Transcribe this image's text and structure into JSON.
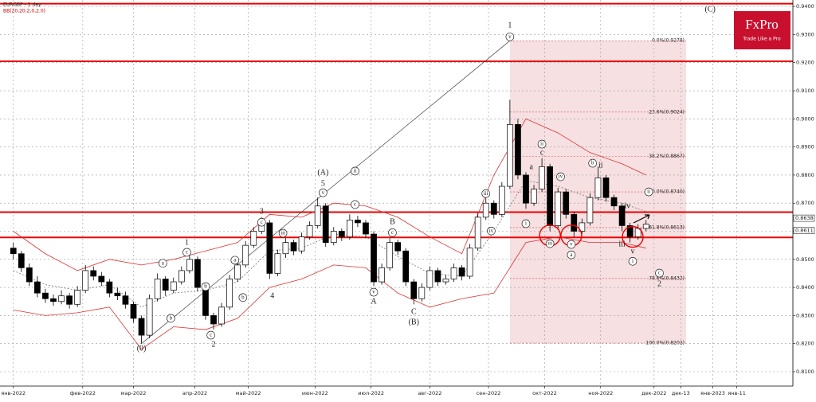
{
  "chart_data": {
    "type": "candlestick",
    "title": "EURGBP - 1 day",
    "subtitle": "BB(20,20,2,0,2.0)",
    "brand": {
      "name": "FxPro",
      "tagline": "Trade Like a Pro"
    },
    "xlim": [
      -5,
      292
    ],
    "ylim": [
      0.8049,
      0.9423
    ],
    "xticks": [
      {
        "value": 0,
        "label": "янв-2022"
      },
      {
        "value": 26,
        "label": "фев-2022"
      },
      {
        "value": 45,
        "label": "мар-2022"
      },
      {
        "value": 68,
        "label": "апр-2022"
      },
      {
        "value": 88,
        "label": "май-2022"
      },
      {
        "value": 113,
        "label": "июн-2022"
      },
      {
        "value": 134,
        "label": "июл-2022"
      },
      {
        "value": 156,
        "label": "авг-2022"
      },
      {
        "value": 178,
        "label": "сен-2022"
      },
      {
        "value": 199,
        "label": "окт-2022"
      },
      {
        "value": 220,
        "label": "ноя-2022"
      },
      {
        "value": 240,
        "label": "дек-2022"
      },
      {
        "value": 250,
        "label": "дек-13"
      },
      {
        "value": 262,
        "label": "янв-2023"
      },
      {
        "value": 271,
        "label": "янв-11"
      }
    ],
    "yticks": [
      {
        "value": 0.81,
        "label": "0.8100"
      },
      {
        "value": 0.82,
        "label": "0.8200"
      },
      {
        "value": 0.83,
        "label": "0.8300"
      },
      {
        "value": 0.84,
        "label": "0.8400"
      },
      {
        "value": 0.85,
        "label": "0.8500"
      },
      {
        "value": 0.86,
        "label": "0.8600"
      },
      {
        "value": 0.87,
        "label": "0.8700"
      },
      {
        "value": 0.88,
        "label": "0.8800"
      },
      {
        "value": 0.89,
        "label": "0.8900"
      },
      {
        "value": 0.9,
        "label": "0.9000"
      },
      {
        "value": 0.91,
        "label": "0.9100"
      },
      {
        "value": 0.92,
        "label": "0.9200"
      },
      {
        "value": 0.93,
        "label": "0.9300"
      },
      {
        "value": 0.94,
        "label": "0.9400"
      }
    ],
    "grid": true,
    "up_color": "#ffffff",
    "down_color": "#000000",
    "x": [
      0,
      3,
      6,
      9,
      12,
      15,
      18,
      21,
      24,
      27,
      30,
      33,
      36,
      39,
      42,
      45,
      48,
      51,
      54,
      57,
      60,
      63,
      66,
      69,
      72,
      75,
      78,
      81,
      84,
      87,
      90,
      93,
      96,
      99,
      102,
      105,
      108,
      111,
      114,
      117,
      120,
      123,
      126,
      129,
      132,
      135,
      138,
      141,
      144,
      147,
      150,
      153,
      156,
      159,
      162,
      165,
      168,
      171,
      174,
      177,
      180,
      183,
      186,
      189,
      192,
      195,
      198,
      201,
      204,
      207,
      210,
      213,
      216,
      219,
      222,
      225,
      228,
      231,
      234,
      237
    ],
    "open": [
      0.854,
      0.852,
      0.847,
      0.842,
      0.838,
      0.836,
      0.835,
      0.837,
      0.834,
      0.839,
      0.846,
      0.844,
      0.842,
      0.838,
      0.837,
      0.834,
      0.829,
      0.823,
      0.836,
      0.843,
      0.839,
      0.842,
      0.846,
      0.85,
      0.84,
      0.83,
      0.827,
      0.833,
      0.843,
      0.848,
      0.855,
      0.86,
      0.863,
      0.845,
      0.852,
      0.856,
      0.853,
      0.858,
      0.862,
      0.869,
      0.856,
      0.86,
      0.858,
      0.864,
      0.863,
      0.859,
      0.842,
      0.847,
      0.856,
      0.853,
      0.842,
      0.836,
      0.84,
      0.846,
      0.842,
      0.843,
      0.847,
      0.844,
      0.854,
      0.865,
      0.87,
      0.866,
      0.876,
      0.898,
      0.88,
      0.87,
      0.875,
      0.883,
      0.862,
      0.874,
      0.866,
      0.86,
      0.863,
      0.872,
      0.879,
      0.872,
      0.869,
      0.862,
      0.858,
      0.861
    ],
    "high": [
      0.856,
      0.853,
      0.8485,
      0.844,
      0.8395,
      0.8375,
      0.839,
      0.838,
      0.8405,
      0.848,
      0.8475,
      0.8455,
      0.843,
      0.84,
      0.8385,
      0.835,
      0.83,
      0.8375,
      0.845,
      0.844,
      0.8435,
      0.8475,
      0.853,
      0.851,
      0.841,
      0.831,
      0.8345,
      0.8445,
      0.8495,
      0.8565,
      0.8615,
      0.865,
      0.864,
      0.8535,
      0.8575,
      0.857,
      0.8595,
      0.8635,
      0.872,
      0.87,
      0.8615,
      0.861,
      0.866,
      0.8655,
      0.864,
      0.86,
      0.8485,
      0.8575,
      0.857,
      0.854,
      0.843,
      0.8415,
      0.8475,
      0.847,
      0.8445,
      0.8485,
      0.848,
      0.8555,
      0.8665,
      0.872,
      0.871,
      0.8775,
      0.9068,
      0.9,
      0.881,
      0.8765,
      0.886,
      0.884,
      0.8755,
      0.875,
      0.867,
      0.8645,
      0.8735,
      0.883,
      0.88,
      0.873,
      0.87,
      0.863,
      0.8625,
      0.864
    ],
    "low": [
      0.85,
      0.8455,
      0.8405,
      0.8365,
      0.8345,
      0.8335,
      0.834,
      0.8325,
      0.833,
      0.838,
      0.8425,
      0.8405,
      0.8365,
      0.8355,
      0.8325,
      0.8275,
      0.82,
      0.822,
      0.835,
      0.837,
      0.838,
      0.841,
      0.845,
      0.8385,
      0.8285,
      0.825,
      0.826,
      0.832,
      0.842,
      0.847,
      0.854,
      0.859,
      0.843,
      0.844,
      0.8505,
      0.8515,
      0.852,
      0.857,
      0.861,
      0.8545,
      0.855,
      0.8565,
      0.857,
      0.8615,
      0.8575,
      0.8405,
      0.841,
      0.846,
      0.8515,
      0.8405,
      0.834,
      0.835,
      0.839,
      0.8405,
      0.841,
      0.842,
      0.8425,
      0.843,
      0.853,
      0.864,
      0.8645,
      0.865,
      0.875,
      0.8785,
      0.868,
      0.869,
      0.874,
      0.86,
      0.861,
      0.8645,
      0.858,
      0.859,
      0.862,
      0.871,
      0.8705,
      0.8675,
      0.86,
      0.856,
      0.857,
      0.86
    ],
    "close": [
      0.852,
      0.847,
      0.842,
      0.838,
      0.836,
      0.835,
      0.837,
      0.834,
      0.839,
      0.846,
      0.844,
      0.842,
      0.838,
      0.837,
      0.834,
      0.829,
      0.823,
      0.836,
      0.843,
      0.839,
      0.842,
      0.846,
      0.85,
      0.84,
      0.83,
      0.827,
      0.833,
      0.843,
      0.848,
      0.855,
      0.86,
      0.863,
      0.845,
      0.852,
      0.856,
      0.853,
      0.858,
      0.862,
      0.869,
      0.856,
      0.86,
      0.858,
      0.864,
      0.863,
      0.859,
      0.842,
      0.847,
      0.856,
      0.853,
      0.842,
      0.836,
      0.84,
      0.846,
      0.842,
      0.843,
      0.847,
      0.844,
      0.854,
      0.865,
      0.87,
      0.866,
      0.876,
      0.898,
      0.88,
      0.87,
      0.875,
      0.883,
      0.862,
      0.874,
      0.866,
      0.86,
      0.863,
      0.872,
      0.879,
      0.872,
      0.869,
      0.862,
      0.858,
      0.861,
      0.8625
    ],
    "bands": {
      "color": "#e03030",
      "x": [
        0,
        12,
        24,
        36,
        48,
        60,
        72,
        84,
        96,
        108,
        120,
        132,
        144,
        156,
        168,
        180,
        192,
        204,
        216,
        228,
        237
      ],
      "upper": [
        0.86,
        0.852,
        0.846,
        0.85,
        0.848,
        0.85,
        0.853,
        0.856,
        0.866,
        0.865,
        0.87,
        0.869,
        0.865,
        0.858,
        0.852,
        0.88,
        0.9,
        0.895,
        0.888,
        0.884,
        0.88
      ],
      "middle": [
        0.846,
        0.841,
        0.839,
        0.841,
        0.833,
        0.838,
        0.839,
        0.842,
        0.853,
        0.854,
        0.859,
        0.858,
        0.851,
        0.845,
        0.844,
        0.86,
        0.878,
        0.876,
        0.872,
        0.87,
        0.867
      ],
      "lower": [
        0.832,
        0.83,
        0.831,
        0.833,
        0.818,
        0.826,
        0.825,
        0.829,
        0.84,
        0.843,
        0.848,
        0.847,
        0.838,
        0.833,
        0.836,
        0.838,
        0.856,
        0.858,
        0.856,
        0.856,
        0.854
      ]
    },
    "trendline": {
      "x": [
        48,
        186
      ],
      "y": [
        0.82,
        0.9278
      ]
    },
    "hlines": [
      0.941,
      0.9205,
      0.8668,
      0.8578
    ],
    "price_labels": [
      0.8638,
      0.8611
    ],
    "fib": {
      "xlim": [
        186,
        252
      ],
      "levels": [
        {
          "value": 0.9278,
          "label": "0.0%(0.9278)"
        },
        {
          "value": 0.9024,
          "label": "23.6%(0.9024)"
        },
        {
          "value": 0.8867,
          "label": "38.2%(0.8867)"
        },
        {
          "value": 0.874,
          "label": "50.0%(0.8740)"
        },
        {
          "value": 0.8613,
          "label": "61.8%(0.8613)"
        },
        {
          "value": 0.8432,
          "label": "78.6%(0.8432)"
        },
        {
          "value": 0.8202,
          "label": "100.0%(0.8202)"
        }
      ]
    },
    "annotations": [
      {
        "text": "1",
        "x": 186,
        "y": 0.9332,
        "circled": false
      },
      {
        "text": "v",
        "x": 186,
        "y": 0.9292,
        "circled": true
      },
      {
        "text": "(A)",
        "x": 116,
        "y": 0.8808,
        "circled": false
      },
      {
        "text": "5",
        "x": 116,
        "y": 0.8768,
        "circled": false
      },
      {
        "text": "v",
        "x": 116,
        "y": 0.8737,
        "circled": true
      },
      {
        "text": "3",
        "x": 93,
        "y": 0.8669,
        "circled": false
      },
      {
        "text": "c",
        "x": 93,
        "y": 0.8632,
        "circled": true
      },
      {
        "text": "1",
        "x": 65,
        "y": 0.8559,
        "circled": false
      },
      {
        "text": "c",
        "x": 65,
        "y": 0.8525,
        "circled": true
      },
      {
        "text": "(0)",
        "x": 48,
        "y": 0.8182,
        "circled": false
      },
      {
        "text": "2",
        "x": 75,
        "y": 0.8196,
        "circled": false
      },
      {
        "text": "c",
        "x": 74,
        "y": 0.823,
        "circled": true
      },
      {
        "text": "4",
        "x": 97,
        "y": 0.8369,
        "circled": false
      },
      {
        "text": "A",
        "x": 135,
        "y": 0.8349,
        "circled": false
      },
      {
        "text": "v",
        "x": 135,
        "y": 0.8383,
        "circled": true
      },
      {
        "text": "B",
        "x": 142,
        "y": 0.8632,
        "circled": false
      },
      {
        "text": "c",
        "x": 142,
        "y": 0.8595,
        "circled": true
      },
      {
        "text": "C",
        "x": 150,
        "y": 0.8312,
        "circled": false
      },
      {
        "text": "(B)",
        "x": 150,
        "y": 0.8275,
        "circled": false
      },
      {
        "text": "(C)",
        "x": 261,
        "y": 0.9389,
        "circled": false
      },
      {
        "text": "a",
        "x": 56,
        "y": 0.8486,
        "circled": true
      },
      {
        "text": "b",
        "x": 59,
        "y": 0.829,
        "circled": true
      },
      {
        "text": "b",
        "x": 72,
        "y": 0.8403,
        "circled": true
      },
      {
        "text": "a",
        "x": 83,
        "y": 0.8497,
        "circled": true
      },
      {
        "text": "b",
        "x": 86,
        "y": 0.8364,
        "circled": true
      },
      {
        "text": "iii",
        "x": 101,
        "y": 0.8593,
        "circled": true
      },
      {
        "text": "ii",
        "x": 128,
        "y": 0.8814,
        "circled": true
      },
      {
        "text": "c",
        "x": 128,
        "y": 0.8695,
        "circled": true
      },
      {
        "text": "iii",
        "x": 177,
        "y": 0.8734,
        "circled": true
      },
      {
        "text": "iv",
        "x": 179,
        "y": 0.8601,
        "circled": true
      },
      {
        "text": "a",
        "x": 194,
        "y": 0.8828,
        "circled": false
      },
      {
        "text": "c",
        "x": 198,
        "y": 0.8879,
        "circled": false
      },
      {
        "text": "ii",
        "x": 198,
        "y": 0.891,
        "circled": true
      },
      {
        "text": "iv",
        "x": 205,
        "y": 0.8794,
        "circled": true
      },
      {
        "text": "b",
        "x": 217,
        "y": 0.8842,
        "circled": true
      },
      {
        "text": "ii",
        "x": 220,
        "y": 0.8833,
        "circled": false
      },
      {
        "text": "ii",
        "x": 238,
        "y": 0.874,
        "circled": true
      },
      {
        "text": "iv",
        "x": 230,
        "y": 0.8689,
        "circled": false
      },
      {
        "text": "i",
        "x": 192,
        "y": 0.8627,
        "circled": true
      },
      {
        "text": "iii",
        "x": 201,
        "y": 0.8556,
        "circled": true
      },
      {
        "text": "v",
        "x": 209,
        "y": 0.8553,
        "circled": true
      },
      {
        "text": "a",
        "x": 209,
        "y": 0.8516,
        "circled": true
      },
      {
        "text": "iii",
        "x": 228,
        "y": 0.8553,
        "circled": false
      },
      {
        "text": "v",
        "x": 232,
        "y": 0.8527,
        "circled": false
      },
      {
        "text": "i",
        "x": 232,
        "y": 0.8493,
        "circled": true
      },
      {
        "text": "c",
        "x": 242,
        "y": 0.8451,
        "circled": true
      },
      {
        "text": "2",
        "x": 242,
        "y": 0.8411,
        "circled": false
      }
    ],
    "circles": [
      {
        "x": 201,
        "y": 0.8585
      },
      {
        "x": 209,
        "y": 0.8585
      },
      {
        "x": 232,
        "y": 0.858
      }
    ]
  }
}
